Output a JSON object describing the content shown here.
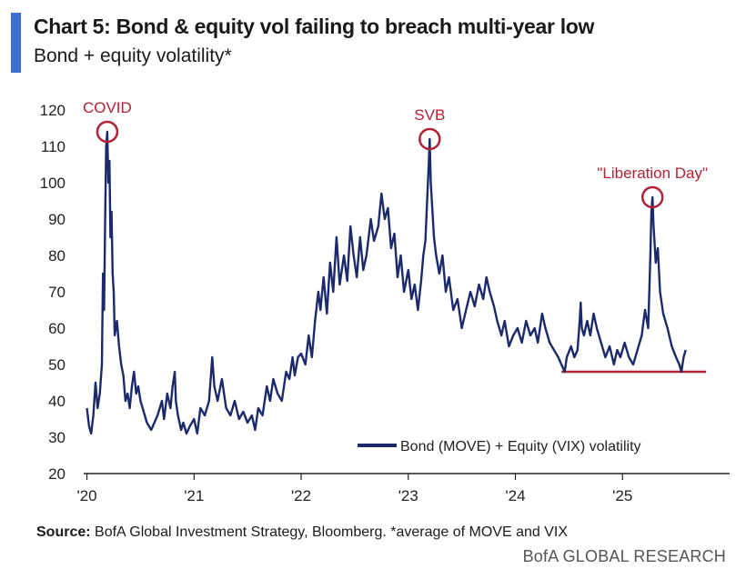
{
  "header": {
    "title": "Chart 5: Bond & equity vol failing to breach multi-year low",
    "subtitle": "Bond + equity volatility*"
  },
  "footer": {
    "source_label": "Source:",
    "source_text": " BofA Global Investment Strategy, Bloomberg. *average of MOVE and VIX",
    "brand": "BofA GLOBAL RESEARCH"
  },
  "colors": {
    "accent": "#3d6fd6",
    "series": "#1b2a6b",
    "annotation": "#b22234",
    "axis": "#222222"
  },
  "chart_data": {
    "type": "line",
    "title": "Bond + equity volatility*",
    "xlabel": "",
    "ylabel": "",
    "ylim": [
      20,
      120
    ],
    "yticks": [
      "20",
      "30",
      "40",
      "50",
      "60",
      "70",
      "80",
      "90",
      "100",
      "110",
      "120"
    ],
    "xticks": [
      {
        "label": "'20",
        "x": 2020.0
      },
      {
        "label": "'21",
        "x": 2021.0
      },
      {
        "label": "'22",
        "x": 2022.0
      },
      {
        "label": "'23",
        "x": 2023.0
      },
      {
        "label": "'24",
        "x": 2024.0
      },
      {
        "label": "'25",
        "x": 2025.0
      }
    ],
    "xlim": [
      2019.97,
      2026.0
    ],
    "legend": {
      "label": "Bond (MOVE) + Equity (VIX) volatility",
      "position": "bottom-right"
    },
    "series": [
      {
        "name": "Bond (MOVE) + Equity (VIX) volatility",
        "points": [
          [
            2020.0,
            38
          ],
          [
            2020.02,
            33
          ],
          [
            2020.04,
            31
          ],
          [
            2020.06,
            36
          ],
          [
            2020.08,
            45
          ],
          [
            2020.1,
            38
          ],
          [
            2020.12,
            42
          ],
          [
            2020.14,
            50
          ],
          [
            2020.15,
            75
          ],
          [
            2020.16,
            65
          ],
          [
            2020.17,
            88
          ],
          [
            2020.18,
            110
          ],
          [
            2020.19,
            114
          ],
          [
            2020.2,
            100
          ],
          [
            2020.21,
            106
          ],
          [
            2020.22,
            85
          ],
          [
            2020.23,
            92
          ],
          [
            2020.24,
            75
          ],
          [
            2020.25,
            70
          ],
          [
            2020.26,
            58
          ],
          [
            2020.28,
            62
          ],
          [
            2020.3,
            55
          ],
          [
            2020.32,
            50
          ],
          [
            2020.34,
            47
          ],
          [
            2020.36,
            40
          ],
          [
            2020.38,
            42
          ],
          [
            2020.4,
            38
          ],
          [
            2020.42,
            44
          ],
          [
            2020.44,
            48
          ],
          [
            2020.46,
            42
          ],
          [
            2020.48,
            44
          ],
          [
            2020.5,
            40
          ],
          [
            2020.52,
            38
          ],
          [
            2020.54,
            36
          ],
          [
            2020.56,
            34
          ],
          [
            2020.58,
            33
          ],
          [
            2020.6,
            32
          ],
          [
            2020.63,
            34
          ],
          [
            2020.66,
            36
          ],
          [
            2020.7,
            40
          ],
          [
            2020.72,
            35
          ],
          [
            2020.75,
            42
          ],
          [
            2020.78,
            38
          ],
          [
            2020.8,
            44
          ],
          [
            2020.82,
            48
          ],
          [
            2020.83,
            40
          ],
          [
            2020.85,
            36
          ],
          [
            2020.88,
            32
          ],
          [
            2020.9,
            34
          ],
          [
            2020.93,
            31
          ],
          [
            2020.96,
            33
          ],
          [
            2021.0,
            35
          ],
          [
            2021.03,
            31
          ],
          [
            2021.06,
            38
          ],
          [
            2021.1,
            36
          ],
          [
            2021.14,
            40
          ],
          [
            2021.17,
            52
          ],
          [
            2021.19,
            44
          ],
          [
            2021.22,
            40
          ],
          [
            2021.26,
            46
          ],
          [
            2021.3,
            38
          ],
          [
            2021.34,
            36
          ],
          [
            2021.38,
            40
          ],
          [
            2021.42,
            35
          ],
          [
            2021.46,
            37
          ],
          [
            2021.5,
            34
          ],
          [
            2021.54,
            36
          ],
          [
            2021.57,
            32
          ],
          [
            2021.6,
            38
          ],
          [
            2021.64,
            36
          ],
          [
            2021.68,
            44
          ],
          [
            2021.71,
            40
          ],
          [
            2021.74,
            46
          ],
          [
            2021.78,
            42
          ],
          [
            2021.82,
            40
          ],
          [
            2021.86,
            48
          ],
          [
            2021.89,
            46
          ],
          [
            2021.92,
            52
          ],
          [
            2021.94,
            47
          ],
          [
            2021.97,
            52
          ],
          [
            2022.0,
            53
          ],
          [
            2022.04,
            50
          ],
          [
            2022.07,
            58
          ],
          [
            2022.1,
            52
          ],
          [
            2022.13,
            62
          ],
          [
            2022.16,
            70
          ],
          [
            2022.18,
            65
          ],
          [
            2022.21,
            74
          ],
          [
            2022.24,
            64
          ],
          [
            2022.27,
            78
          ],
          [
            2022.3,
            70
          ],
          [
            2022.33,
            85
          ],
          [
            2022.36,
            72
          ],
          [
            2022.4,
            80
          ],
          [
            2022.43,
            73
          ],
          [
            2022.46,
            88
          ],
          [
            2022.49,
            80
          ],
          [
            2022.52,
            74
          ],
          [
            2022.55,
            85
          ],
          [
            2022.58,
            76
          ],
          [
            2022.61,
            80
          ],
          [
            2022.65,
            90
          ],
          [
            2022.68,
            84
          ],
          [
            2022.72,
            88
          ],
          [
            2022.75,
            97
          ],
          [
            2022.78,
            90
          ],
          [
            2022.81,
            93
          ],
          [
            2022.84,
            82
          ],
          [
            2022.87,
            86
          ],
          [
            2022.9,
            74
          ],
          [
            2022.93,
            80
          ],
          [
            2022.96,
            70
          ],
          [
            2023.0,
            76
          ],
          [
            2023.03,
            68
          ],
          [
            2023.06,
            72
          ],
          [
            2023.09,
            65
          ],
          [
            2023.12,
            73
          ],
          [
            2023.14,
            80
          ],
          [
            2023.16,
            84
          ],
          [
            2023.18,
            98
          ],
          [
            2023.19,
            104
          ],
          [
            2023.2,
            112
          ],
          [
            2023.21,
            100
          ],
          [
            2023.22,
            95
          ],
          [
            2023.24,
            85
          ],
          [
            2023.26,
            80
          ],
          [
            2023.29,
            75
          ],
          [
            2023.32,
            80
          ],
          [
            2023.35,
            70
          ],
          [
            2023.38,
            74
          ],
          [
            2023.42,
            65
          ],
          [
            2023.46,
            68
          ],
          [
            2023.5,
            60
          ],
          [
            2023.54,
            65
          ],
          [
            2023.58,
            70
          ],
          [
            2023.62,
            66
          ],
          [
            2023.66,
            72
          ],
          [
            2023.7,
            68
          ],
          [
            2023.73,
            74
          ],
          [
            2023.76,
            70
          ],
          [
            2023.8,
            66
          ],
          [
            2023.83,
            62
          ],
          [
            2023.87,
            58
          ],
          [
            2023.9,
            62
          ],
          [
            2023.94,
            55
          ],
          [
            2023.98,
            58
          ],
          [
            2024.02,
            60
          ],
          [
            2024.06,
            56
          ],
          [
            2024.1,
            62
          ],
          [
            2024.14,
            58
          ],
          [
            2024.18,
            60
          ],
          [
            2024.21,
            56
          ],
          [
            2024.25,
            64
          ],
          [
            2024.28,
            60
          ],
          [
            2024.32,
            56
          ],
          [
            2024.36,
            54
          ],
          [
            2024.4,
            52
          ],
          [
            2024.43,
            50
          ],
          [
            2024.46,
            48
          ],
          [
            2024.48,
            52
          ],
          [
            2024.52,
            55
          ],
          [
            2024.55,
            52
          ],
          [
            2024.58,
            54
          ],
          [
            2024.6,
            62
          ],
          [
            2024.61,
            67
          ],
          [
            2024.62,
            60
          ],
          [
            2024.64,
            58
          ],
          [
            2024.67,
            62
          ],
          [
            2024.7,
            58
          ],
          [
            2024.73,
            64
          ],
          [
            2024.76,
            60
          ],
          [
            2024.8,
            56
          ],
          [
            2024.84,
            52
          ],
          [
            2024.88,
            55
          ],
          [
            2024.92,
            50
          ],
          [
            2024.95,
            54
          ],
          [
            2024.98,
            52
          ],
          [
            2025.02,
            56
          ],
          [
            2025.06,
            52
          ],
          [
            2025.1,
            50
          ],
          [
            2025.14,
            54
          ],
          [
            2025.18,
            58
          ],
          [
            2025.21,
            65
          ],
          [
            2025.24,
            60
          ],
          [
            2025.26,
            80
          ],
          [
            2025.27,
            92
          ],
          [
            2025.28,
            96
          ],
          [
            2025.29,
            88
          ],
          [
            2025.31,
            78
          ],
          [
            2025.33,
            82
          ],
          [
            2025.35,
            70
          ],
          [
            2025.38,
            64
          ],
          [
            2025.42,
            60
          ],
          [
            2025.46,
            55
          ],
          [
            2025.5,
            52
          ],
          [
            2025.53,
            50
          ],
          [
            2025.55,
            48
          ],
          [
            2025.57,
            52
          ],
          [
            2025.59,
            54
          ]
        ]
      }
    ],
    "annotations": [
      {
        "label": "COVID",
        "x": 2020.19,
        "y": 114
      },
      {
        "label": "SVB",
        "x": 2023.2,
        "y": 112
      },
      {
        "label": "\"Liberation Day\"",
        "x": 2025.28,
        "y": 96
      }
    ],
    "reference_line": {
      "y": 48,
      "x_start": 2024.43,
      "x_end": 2025.78
    }
  }
}
